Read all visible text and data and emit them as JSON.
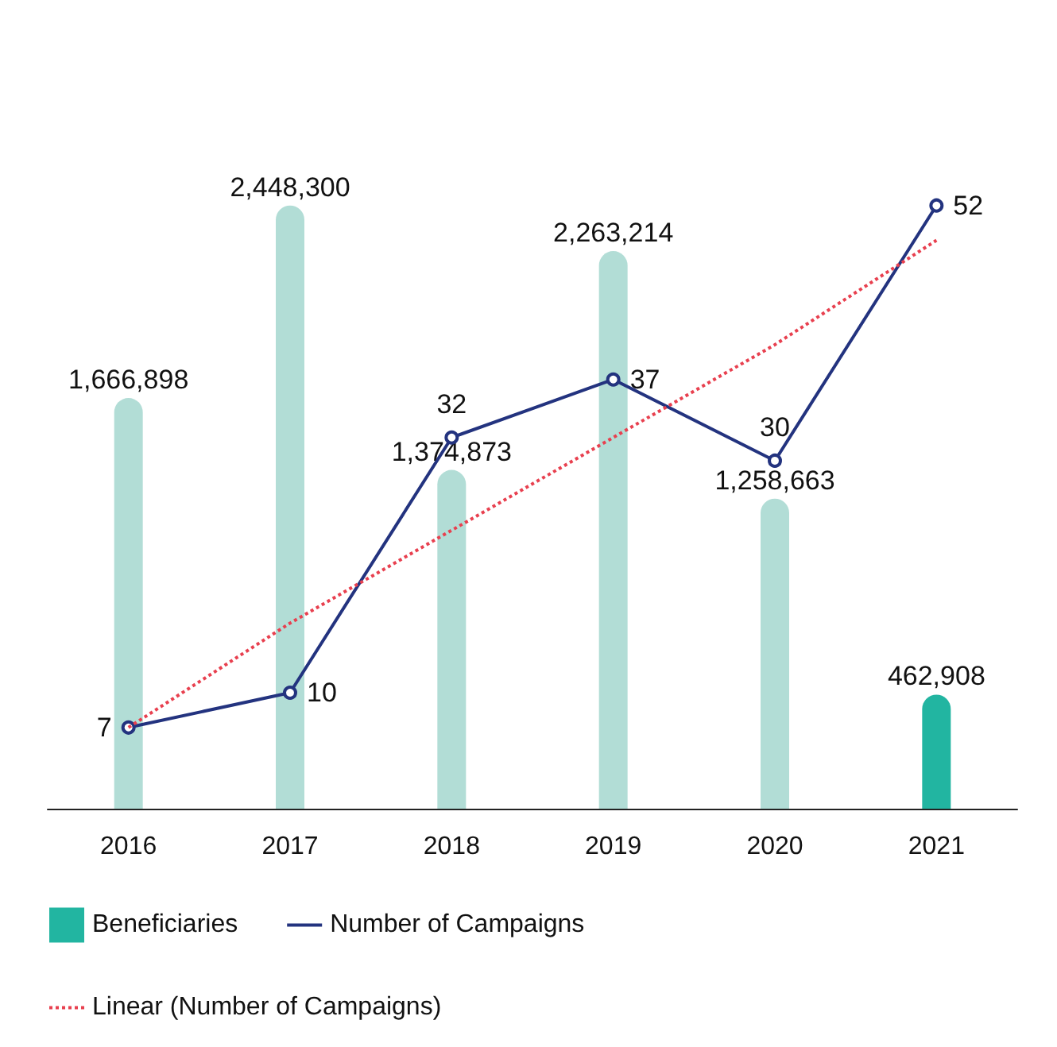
{
  "chart_data": {
    "type": "bar",
    "categories": [
      "2016",
      "2017",
      "2018",
      "2019",
      "2020",
      "2021"
    ],
    "series": [
      {
        "name": "Beneficiaries",
        "type": "bar",
        "color": "#22b5a1",
        "colors": [
          "#b2ddd6",
          "#b2ddd6",
          "#b2ddd6",
          "#b2ddd6",
          "#b2ddd6",
          "#22b5a1"
        ],
        "values": [
          1666898,
          2448300,
          1374873,
          2263214,
          1258663,
          462908
        ],
        "value_labels": [
          "1,666,898",
          "2,448,300",
          "1,374,873",
          "2,263,214",
          "1,258,663",
          "462,908"
        ]
      },
      {
        "name": "Number of Campaigns",
        "type": "line",
        "axis": "y2",
        "color": "#23337f",
        "marker": "circle",
        "line_style": "solid",
        "values": [
          7,
          10,
          32,
          37,
          30,
          52
        ],
        "value_labels": [
          "7",
          "10",
          "32",
          "37",
          "30",
          "52"
        ]
      },
      {
        "name": "Linear (Number of Campaigns)",
        "type": "line",
        "axis": "y2",
        "color": "#e8404f",
        "marker": "none",
        "line_style": "dotted",
        "values": [
          7,
          16,
          24,
          32,
          40,
          49
        ]
      }
    ],
    "legend": "bottom",
    "grid": false
  }
}
